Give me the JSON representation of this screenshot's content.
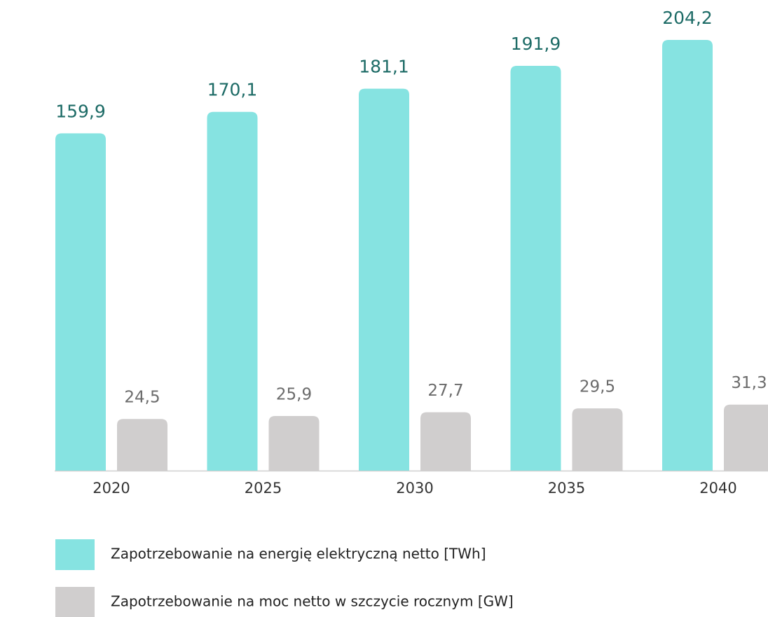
{
  "chart_data": {
    "type": "bar",
    "categories": [
      "2020",
      "2025",
      "2030",
      "2035",
      "2040"
    ],
    "series": [
      {
        "name": "Zapotrzebowanie na energię elektryczną netto [TWh]",
        "color": "#86e3e1",
        "values": [
          159.9,
          170.1,
          181.1,
          191.9,
          204.2
        ],
        "value_labels": [
          "159,9",
          "170,1",
          "181,1",
          "191,9",
          "204,2"
        ]
      },
      {
        "name": "Zapotrzebowanie na moc netto w szczycie rocznym [GW]",
        "color": "#d0cece",
        "values": [
          24.5,
          25.9,
          27.7,
          29.5,
          31.3
        ],
        "value_labels": [
          "24,5",
          "25,9",
          "27,7",
          "29,5",
          "31,3"
        ]
      }
    ],
    "legend": "bottom-left"
  }
}
